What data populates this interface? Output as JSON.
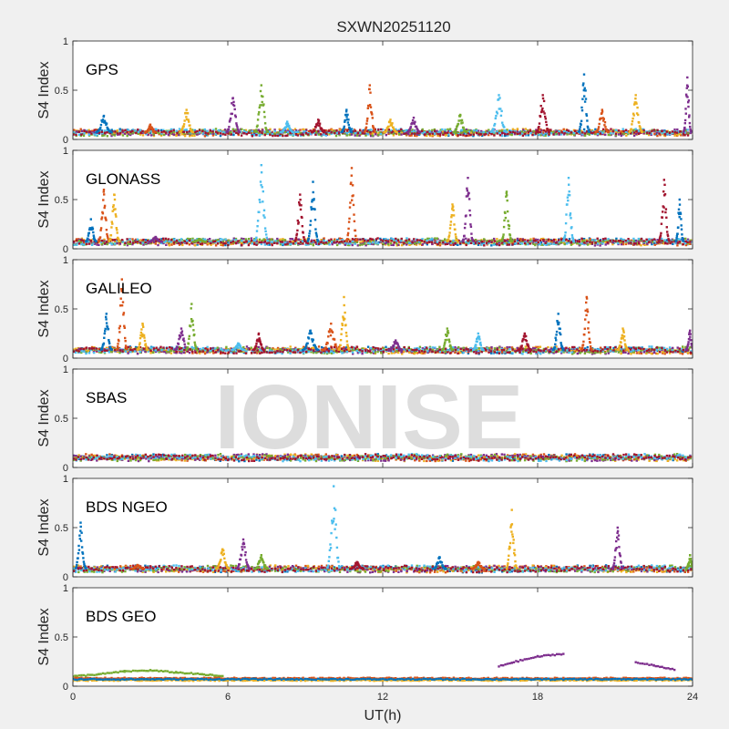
{
  "figure": {
    "title": "SXWN20251120",
    "xlabel": "UT(h)",
    "watermark": "IONISE",
    "colors": [
      "#0072BD",
      "#D95319",
      "#EDB120",
      "#7E2F8E",
      "#77AC30",
      "#4DBEEE",
      "#A2142F"
    ]
  },
  "chart_data": [
    {
      "type": "scatter",
      "panel": "GPS",
      "ylabel": "S4 Index",
      "xlim": [
        0,
        24
      ],
      "ylim": [
        0,
        1
      ],
      "xticks": [
        "0",
        "6",
        "12",
        "18",
        "24"
      ],
      "yticks": [
        "0",
        "0.5",
        "1"
      ],
      "baseline": 0.07,
      "peaks": [
        [
          1.2,
          0.24,
          0.6
        ],
        [
          3,
          0.15,
          0.4
        ],
        [
          4.4,
          0.3,
          0.5
        ],
        [
          6.2,
          0.42,
          0.5
        ],
        [
          7.3,
          0.55,
          0.5
        ],
        [
          8.3,
          0.18,
          0.5
        ],
        [
          9.5,
          0.2,
          0.5
        ],
        [
          10.6,
          0.3,
          0.4
        ],
        [
          11.5,
          0.55,
          0.4
        ],
        [
          12.3,
          0.2,
          0.5
        ],
        [
          13.2,
          0.22,
          0.5
        ],
        [
          15,
          0.25,
          0.5
        ],
        [
          16.5,
          0.45,
          0.6
        ],
        [
          18.2,
          0.45,
          0.5
        ],
        [
          19.8,
          0.66,
          0.4
        ],
        [
          20.5,
          0.3,
          0.5
        ],
        [
          21.8,
          0.45,
          0.5
        ],
        [
          23.8,
          0.63,
          0.3
        ]
      ]
    },
    {
      "type": "scatter",
      "panel": "GLONASS",
      "ylabel": "S4 Index",
      "xlim": [
        0,
        24
      ],
      "ylim": [
        0,
        1
      ],
      "xticks": [
        "0",
        "6",
        "12",
        "18",
        "24"
      ],
      "yticks": [
        "0",
        "0.5",
        "1"
      ],
      "baseline": 0.07,
      "peaks": [
        [
          0.7,
          0.3,
          0.4
        ],
        [
          1.2,
          0.6,
          0.4
        ],
        [
          1.6,
          0.55,
          0.4
        ],
        [
          3.2,
          0.12,
          0.5
        ],
        [
          4.9,
          0.1,
          0.5
        ],
        [
          7.3,
          0.85,
          0.5
        ],
        [
          8.8,
          0.55,
          0.4
        ],
        [
          9.3,
          0.68,
          0.4
        ],
        [
          10.8,
          0.82,
          0.4
        ],
        [
          14.7,
          0.45,
          0.4
        ],
        [
          15.3,
          0.72,
          0.4
        ],
        [
          16.8,
          0.58,
          0.4
        ],
        [
          19.2,
          0.72,
          0.4
        ],
        [
          22.9,
          0.7,
          0.4
        ],
        [
          23.5,
          0.5,
          0.3
        ]
      ]
    },
    {
      "type": "scatter",
      "panel": "GALILEO",
      "ylabel": "S4 Index",
      "xlim": [
        0,
        24
      ],
      "ylim": [
        0,
        1
      ],
      "xticks": [
        "0",
        "6",
        "12",
        "18",
        "24"
      ],
      "yticks": [
        "0",
        "0.5",
        "1"
      ],
      "baseline": 0.08,
      "peaks": [
        [
          1.3,
          0.45,
          0.4
        ],
        [
          1.9,
          0.8,
          0.4
        ],
        [
          2.7,
          0.35,
          0.4
        ],
        [
          4.2,
          0.3,
          0.5
        ],
        [
          4.6,
          0.55,
          0.4
        ],
        [
          6.4,
          0.15,
          0.5
        ],
        [
          7.2,
          0.25,
          0.4
        ],
        [
          9.2,
          0.28,
          0.6
        ],
        [
          10,
          0.35,
          0.6
        ],
        [
          10.5,
          0.62,
          0.4
        ],
        [
          12.5,
          0.18,
          0.5
        ],
        [
          14.5,
          0.3,
          0.4
        ],
        [
          15.7,
          0.25,
          0.4
        ],
        [
          17.5,
          0.25,
          0.5
        ],
        [
          18.8,
          0.45,
          0.4
        ],
        [
          19.9,
          0.62,
          0.4
        ],
        [
          21.3,
          0.3,
          0.4
        ],
        [
          23.9,
          0.28,
          0.3
        ]
      ]
    },
    {
      "type": "scatter",
      "panel": "SBAS",
      "ylabel": "S4 Index",
      "xlim": [
        0,
        24
      ],
      "ylim": [
        0,
        1
      ],
      "xticks": [
        "0",
        "6",
        "12",
        "18",
        "24"
      ],
      "yticks": [
        "0",
        "0.5",
        "1"
      ],
      "baseline": 0.1,
      "peaks": []
    },
    {
      "type": "scatter",
      "panel": "BDS NGEO",
      "ylabel": "S4 Index",
      "xlim": [
        0,
        24
      ],
      "ylim": [
        0,
        1
      ],
      "xticks": [
        "0",
        "6",
        "12",
        "18",
        "24"
      ],
      "yticks": [
        "0",
        "0.5",
        "1"
      ],
      "baseline": 0.08,
      "peaks": [
        [
          0.3,
          0.55,
          0.4
        ],
        [
          2.5,
          0.12,
          0.5
        ],
        [
          5.8,
          0.28,
          0.5
        ],
        [
          6.6,
          0.38,
          0.5
        ],
        [
          7.3,
          0.22,
          0.5
        ],
        [
          10.1,
          0.92,
          0.5
        ],
        [
          11,
          0.15,
          0.5
        ],
        [
          14.2,
          0.2,
          0.5
        ],
        [
          15.7,
          0.15,
          0.5
        ],
        [
          17,
          0.68,
          0.4
        ],
        [
          21.1,
          0.5,
          0.4
        ],
        [
          23.9,
          0.22,
          0.3
        ]
      ]
    },
    {
      "type": "scatter",
      "panel": "BDS GEO",
      "ylabel": "S4 Index",
      "xlim": [
        0,
        24
      ],
      "ylim": [
        0,
        1
      ],
      "xticks": [
        "0",
        "6",
        "12",
        "18",
        "24"
      ],
      "yticks": [
        "0",
        "0.5",
        "1"
      ],
      "geo_tracks": [
        {
          "color": 4,
          "x": [
            0,
            1,
            2,
            3,
            4,
            5,
            5.8
          ],
          "y": [
            0.1,
            0.12,
            0.15,
            0.16,
            0.14,
            0.12,
            0.1
          ]
        },
        {
          "color": 3,
          "x": [
            16.5,
            17,
            18,
            19
          ],
          "y": [
            0.2,
            0.24,
            0.3,
            0.33
          ]
        },
        {
          "color": 3,
          "x": [
            21.8,
            22.5,
            23.3
          ],
          "y": [
            0.24,
            0.21,
            0.17
          ]
        },
        {
          "color": 1,
          "x": [
            0,
            24
          ],
          "y": [
            0.08,
            0.08
          ]
        },
        {
          "color": 2,
          "x": [
            0,
            24
          ],
          "y": [
            0.06,
            0.06
          ]
        },
        {
          "color": 0,
          "x": [
            0,
            24
          ],
          "y": [
            0.07,
            0.07
          ]
        }
      ]
    }
  ]
}
